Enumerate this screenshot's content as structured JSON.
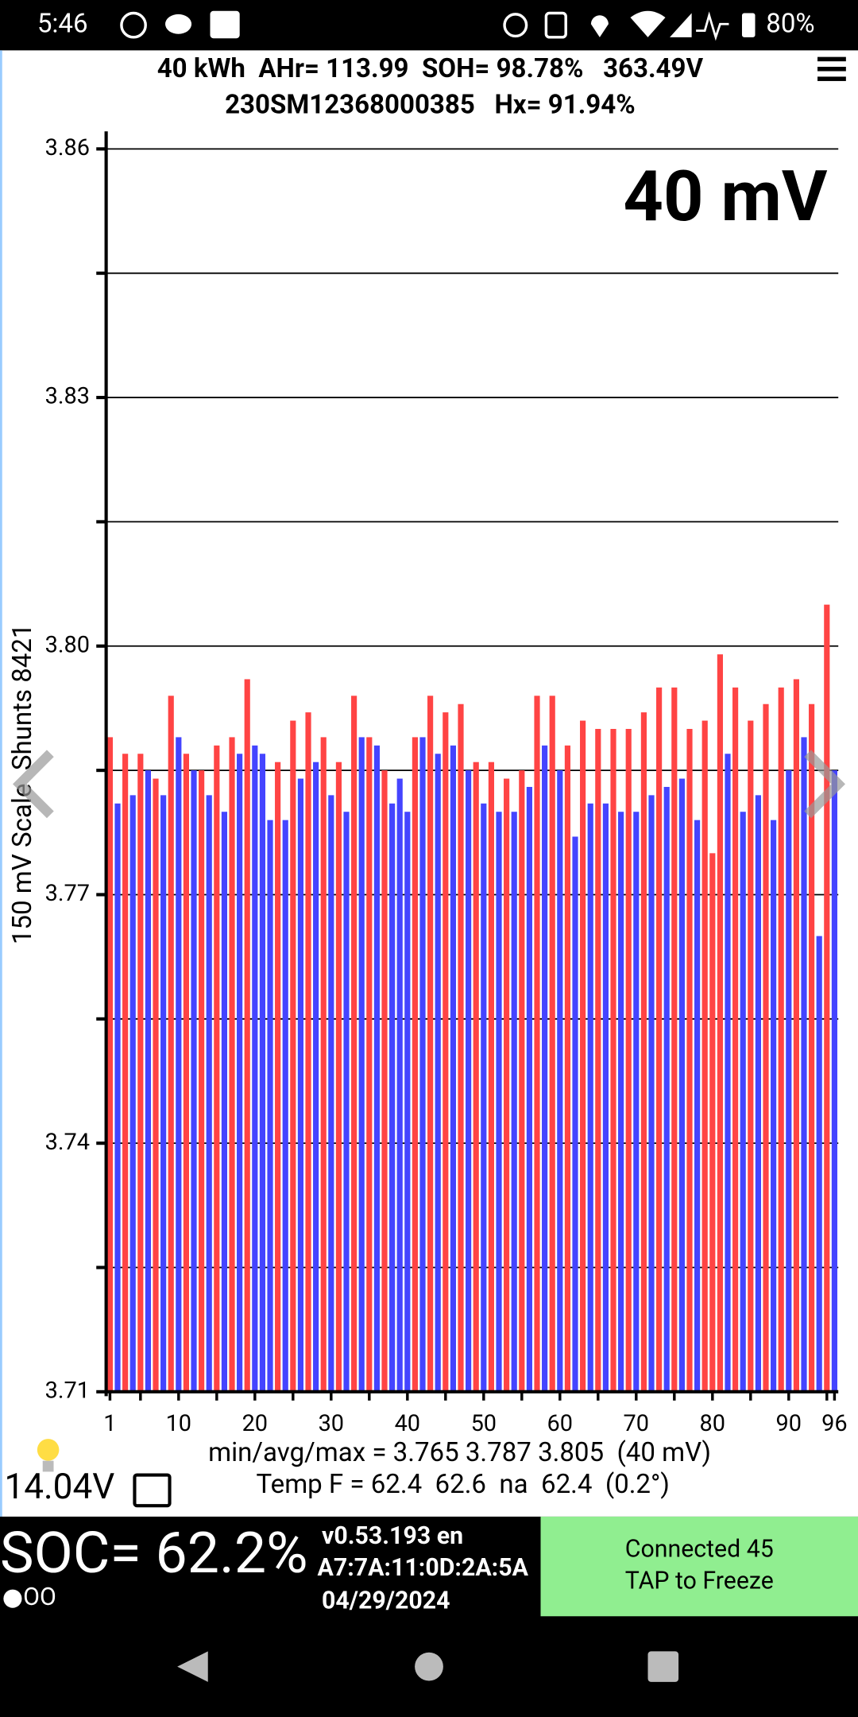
{
  "status_bar": {
    "time": "5:46",
    "battery": "80%"
  },
  "header": {
    "line1": "40 kWh  AHr= 113.99  SOH= 98.78%   363.49V",
    "line2": "230SM12368000385   Hx= 91.94%"
  },
  "chart_data": {
    "type": "bar",
    "scale_label": "40 mV",
    "y_label": "150 mV Scale  Shunts 8421",
    "x": [
      1,
      2,
      3,
      4,
      5,
      6,
      7,
      8,
      9,
      10,
      11,
      12,
      13,
      14,
      15,
      16,
      17,
      18,
      19,
      20,
      21,
      22,
      23,
      24,
      25,
      26,
      27,
      28,
      29,
      30,
      31,
      32,
      33,
      34,
      35,
      36,
      37,
      38,
      39,
      40,
      41,
      42,
      43,
      44,
      45,
      46,
      47,
      48,
      49,
      50,
      51,
      52,
      53,
      54,
      55,
      56,
      57,
      58,
      59,
      60,
      61,
      62,
      63,
      64,
      65,
      66,
      67,
      68,
      69,
      70,
      71,
      72,
      73,
      74,
      75,
      76,
      77,
      78,
      79,
      80,
      81,
      82,
      83,
      84,
      85,
      86,
      87,
      88,
      89,
      90,
      91,
      92,
      93,
      94,
      95,
      96
    ],
    "values": [
      3.789,
      3.781,
      3.787,
      3.782,
      3.787,
      3.785,
      3.784,
      3.782,
      3.794,
      3.789,
      3.787,
      3.785,
      3.785,
      3.782,
      3.788,
      3.78,
      3.789,
      3.787,
      3.796,
      3.788,
      3.787,
      3.779,
      3.786,
      3.779,
      3.791,
      3.784,
      3.792,
      3.786,
      3.789,
      3.782,
      3.786,
      3.78,
      3.794,
      3.789,
      3.789,
      3.788,
      3.785,
      3.781,
      3.784,
      3.78,
      3.789,
      3.789,
      3.794,
      3.787,
      3.792,
      3.788,
      3.793,
      3.785,
      3.786,
      3.781,
      3.786,
      3.78,
      3.784,
      3.78,
      3.785,
      3.783,
      3.794,
      3.788,
      3.794,
      3.785,
      3.788,
      3.777,
      3.791,
      3.781,
      3.79,
      3.781,
      3.79,
      3.78,
      3.79,
      3.78,
      3.792,
      3.782,
      3.795,
      3.783,
      3.795,
      3.784,
      3.79,
      3.779,
      3.791,
      3.775,
      3.799,
      3.787,
      3.795,
      3.78,
      3.791,
      3.782,
      3.793,
      3.779,
      3.795,
      3.785,
      3.796,
      3.789,
      3.793,
      3.765,
      3.805,
      3.785
    ],
    "colors": [
      "#f44",
      "#44f",
      "#f44",
      "#44f",
      "#f44",
      "#44f",
      "#f44",
      "#44f",
      "#f44",
      "#44f",
      "#f44",
      "#44f",
      "#f44",
      "#44f",
      "#f44",
      "#44f",
      "#f44",
      "#44f",
      "#f44",
      "#44f",
      "#44f",
      "#44f",
      "#f44",
      "#44f",
      "#f44",
      "#44f",
      "#f44",
      "#44f",
      "#f44",
      "#44f",
      "#f44",
      "#44f",
      "#f44",
      "#44f",
      "#f44",
      "#44f",
      "#f44",
      "#44f",
      "#44f",
      "#44f",
      "#f44",
      "#44f",
      "#f44",
      "#44f",
      "#f44",
      "#44f",
      "#f44",
      "#44f",
      "#f44",
      "#44f",
      "#f44",
      "#44f",
      "#f44",
      "#44f",
      "#f44",
      "#44f",
      "#f44",
      "#44f",
      "#f44",
      "#44f",
      "#f44",
      "#44f",
      "#f44",
      "#44f",
      "#f44",
      "#44f",
      "#f44",
      "#44f",
      "#f44",
      "#44f",
      "#f44",
      "#44f",
      "#f44",
      "#44f",
      "#f44",
      "#44f",
      "#f44",
      "#44f",
      "#f44",
      "#f44",
      "#f44",
      "#44f",
      "#f44",
      "#44f",
      "#f44",
      "#44f",
      "#f44",
      "#44f",
      "#f44",
      "#44f",
      "#f44",
      "#44f",
      "#f44",
      "#44f",
      "#f44",
      "#44f"
    ],
    "xlim": [
      0.5,
      96.5
    ],
    "xticks": [
      1,
      10,
      20,
      30,
      40,
      50,
      60,
      70,
      80,
      90,
      96
    ],
    "minor_xticks": [
      5,
      15,
      25,
      35,
      45,
      55,
      65,
      75,
      85,
      95
    ],
    "ylim": [
      3.71,
      3.86
    ],
    "yticks": [
      3.71,
      3.74,
      3.77,
      {
        "value": 3.8,
        "label": "3.80"
      },
      3.83,
      3.86
    ],
    "minor_yticks": [
      3.725,
      3.755,
      3.785,
      3.815,
      3.845
    ],
    "grid": true
  },
  "stats": {
    "min_avg_max": "min/avg/max = 3.765 3.787 3.805  (40 mV)",
    "temp": "Temp F = 62.4  62.6  na  62.4  (0.2°)",
    "aux_voltage": "14.04V"
  },
  "footer": {
    "soc": "SOC= 62.2%",
    "dots": "●OO",
    "version": "v0.53.193 en",
    "mac": "A7:7A:11:0D:2A:5A",
    "date": "04/29/2024",
    "button": {
      "line1": "Connected 45",
      "line2": "TAP to Freeze"
    }
  }
}
